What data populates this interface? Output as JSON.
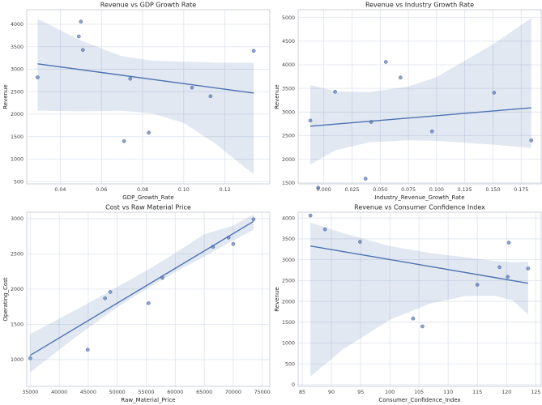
{
  "figure": {
    "style": {
      "background": "#ffffff",
      "accent": "#4c72b0",
      "point_edge": "#3d5c94",
      "band_opacity": 0.16,
      "grid_color": "#dde3ed",
      "spine_color": "#ccd2dc",
      "text_color": "#262626",
      "tick_color": "#3f3f3f"
    }
  },
  "chart_data": [
    {
      "type": "scatter",
      "title": "Revenue vs GDP Growth Rate",
      "xlabel": "GDP_Growth_Rate",
      "ylabel": "Revenue",
      "xlim": [
        0.0237,
        0.1418
      ],
      "ylim": [
        450,
        4325
      ],
      "grid": true,
      "legend": "none",
      "xticks": {
        "values": [
          0.04,
          0.06,
          0.08,
          0.1,
          0.12
        ],
        "labels": [
          "0.04",
          "0.06",
          "0.08",
          "0.10",
          "0.12"
        ]
      },
      "yticks": {
        "values": [
          500,
          1000,
          1500,
          2000,
          2500,
          3000,
          3500,
          4000
        ],
        "labels": [
          "500",
          "1000",
          "1500",
          "2000",
          "2500",
          "3000",
          "3500",
          "4000"
        ]
      },
      "points": [
        [
          0.029,
          2820
        ],
        [
          0.05,
          4060
        ],
        [
          0.049,
          3730
        ],
        [
          0.051,
          3430
        ],
        [
          0.074,
          2790
        ],
        [
          0.071,
          1400
        ],
        [
          0.083,
          1590
        ],
        [
          0.104,
          2590
        ],
        [
          0.113,
          2400
        ],
        [
          0.134,
          3410
        ]
      ],
      "regression_line": {
        "x": [
          0.029,
          0.134
        ],
        "y": [
          3120,
          2470
        ]
      },
      "confidence_band": [
        [
          0.029,
          2075,
          4120
        ],
        [
          0.05,
          2065,
          3640
        ],
        [
          0.07,
          2075,
          3290
        ],
        [
          0.085,
          2015,
          3190
        ],
        [
          0.1,
          1805,
          3170
        ],
        [
          0.115,
          1355,
          3150
        ],
        [
          0.134,
          660,
          3145
        ]
      ]
    },
    {
      "type": "scatter",
      "title": "Revenue vs Industry Growth Rate",
      "xlabel": "Industry_Revenue_Growth_Rate",
      "ylabel": "Revenue",
      "xlim": [
        -0.0228,
        0.1928
      ],
      "ylim": [
        1480,
        5165
      ],
      "grid": true,
      "legend": "none",
      "xticks": {
        "values": [
          0.0,
          0.025,
          0.05,
          0.075,
          0.1,
          0.125,
          0.15,
          0.175
        ],
        "labels": [
          "0.000",
          "0.025",
          "0.050",
          "0.075",
          "0.100",
          "0.125",
          "0.150",
          "0.175"
        ]
      },
      "yticks": {
        "values": [
          1500,
          2000,
          2500,
          3000,
          3500,
          4000,
          4500,
          5000
        ],
        "labels": [
          "1500",
          "2000",
          "2500",
          "3000",
          "3500",
          "4000",
          "4500",
          "5000"
        ]
      },
      "points": [
        [
          -0.012,
          2820
        ],
        [
          -0.005,
          1400
        ],
        [
          0.01,
          3430
        ],
        [
          0.037,
          1590
        ],
        [
          0.042,
          2790
        ],
        [
          0.055,
          4060
        ],
        [
          0.068,
          3730
        ],
        [
          0.096,
          2590
        ],
        [
          0.151,
          3410
        ],
        [
          0.184,
          2400
        ]
      ],
      "regression_line": {
        "x": [
          -0.012,
          0.184
        ],
        "y": [
          2700,
          3090
        ]
      },
      "confidence_band": [
        [
          -0.012,
          1890,
          3570
        ],
        [
          0.01,
          2190,
          3440
        ],
        [
          0.04,
          2360,
          3420
        ],
        [
          0.075,
          2400,
          3540
        ],
        [
          0.1,
          2390,
          3740
        ],
        [
          0.15,
          2310,
          4430
        ],
        [
          0.184,
          2240,
          4990
        ]
      ]
    },
    {
      "type": "scatter",
      "title": "Cost vs Raw Material Price",
      "xlabel": "Raw_Material_Price",
      "ylabel": "Operating_Cost",
      "xlim": [
        34400,
        76300
      ],
      "ylim": [
        620,
        3090
      ],
      "grid": true,
      "legend": "none",
      "xticks": {
        "values": [
          35000,
          40000,
          45000,
          50000,
          55000,
          60000,
          65000,
          70000,
          75000
        ],
        "labels": [
          "35000",
          "40000",
          "45000",
          "50000",
          "55000",
          "60000",
          "65000",
          "70000",
          "75000"
        ]
      },
      "yticks": {
        "values": [
          1000,
          1500,
          2000,
          2500,
          3000
        ],
        "labels": [
          "1000",
          "1500",
          "2000",
          "2500",
          "3000"
        ]
      },
      "points": [
        [
          35000,
          1020
        ],
        [
          44900,
          1140
        ],
        [
          47900,
          1870
        ],
        [
          48800,
          1960
        ],
        [
          55400,
          1800
        ],
        [
          57800,
          2160
        ],
        [
          66500,
          2600
        ],
        [
          69200,
          2730
        ],
        [
          70000,
          2640
        ],
        [
          73500,
          2990
        ]
      ],
      "regression_line": {
        "x": [
          35000,
          73500
        ],
        "y": [
          1060,
          2960
        ]
      },
      "confidence_band": [
        [
          35000,
          820,
          1365
        ],
        [
          40000,
          1140,
          1580
        ],
        [
          45000,
          1450,
          1800
        ],
        [
          50000,
          1740,
          2030
        ],
        [
          55000,
          2000,
          2260
        ],
        [
          60000,
          2240,
          2510
        ],
        [
          65000,
          2460,
          2780
        ],
        [
          70000,
          2690,
          2900
        ],
        [
          73500,
          2840,
          3060
        ]
      ]
    },
    {
      "type": "scatter",
      "title": "Revenue vs Consumer Confidence Index",
      "xlabel": "Consumer_Confidence_Index",
      "ylabel": "Revenue",
      "xlim": [
        84.3,
        125.94
      ],
      "ylim": [
        -40,
        4140
      ],
      "grid": true,
      "legend": "none",
      "xticks": {
        "values": [
          85,
          90,
          95,
          100,
          105,
          110,
          115,
          120,
          125
        ],
        "labels": [
          "85",
          "90",
          "95",
          "100",
          "105",
          "110",
          "115",
          "120",
          "125"
        ]
      },
      "yticks": {
        "values": [
          0,
          500,
          1000,
          1500,
          2000,
          2500,
          3000,
          3500,
          4000
        ],
        "labels": [
          "0",
          "500",
          "1000",
          "1500",
          "2000",
          "2500",
          "3000",
          "3500",
          "4000"
        ]
      },
      "points": [
        [
          86.4,
          4060
        ],
        [
          88.9,
          3730
        ],
        [
          94.9,
          3430
        ],
        [
          104.0,
          1590
        ],
        [
          105.6,
          1400
        ],
        [
          115.0,
          2400
        ],
        [
          118.8,
          2820
        ],
        [
          120.4,
          3410
        ],
        [
          120.2,
          2590
        ],
        [
          123.7,
          2790
        ]
      ],
      "regression_line": {
        "x": [
          86.4,
          123.7
        ],
        "y": [
          3330,
          2435
        ]
      },
      "confidence_band": [
        [
          86.4,
          200,
          3890
        ],
        [
          92,
          850,
          3640
        ],
        [
          100,
          1560,
          3330
        ],
        [
          107,
          1950,
          3160
        ],
        [
          113,
          2130,
          3060
        ],
        [
          118,
          2130,
          2970
        ],
        [
          121,
          2030,
          2940
        ],
        [
          123.7,
          1680,
          2950
        ]
      ]
    }
  ]
}
